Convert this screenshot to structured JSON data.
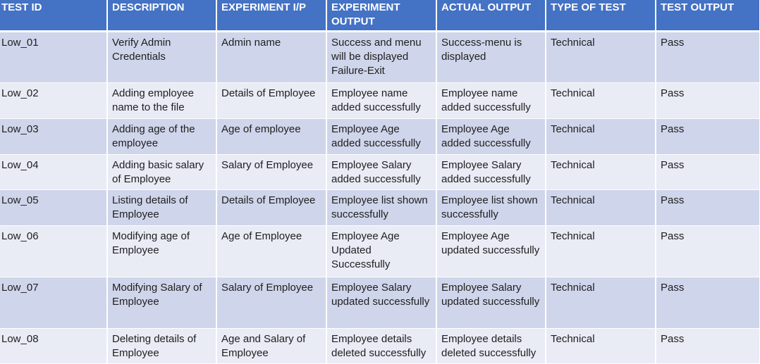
{
  "headers": [
    "TEST ID",
    "DESCRIPTION",
    "EXPERIMENT I/P",
    "EXPERIMENT OUTPUT",
    "ACTUAL OUTPUT",
    "TYPE OF TEST",
    "TEST OUTPUT"
  ],
  "rows": [
    [
      "Low_01",
      "Verify Admin Credentials",
      "Admin name",
      "Success and menu will be displayed Failure-Exit",
      "Success-menu is displayed",
      "Technical",
      "Pass"
    ],
    [
      "Low_02",
      "Adding employee name to the file",
      "Details of Employee",
      "Employee name added successfully",
      "Employee name added successfully",
      "Technical",
      "Pass"
    ],
    [
      "Low_03",
      "Adding age of the employee",
      "Age of employee",
      "Employee Age added successfully",
      "Employee Age added successfully",
      "Technical",
      "Pass"
    ],
    [
      "Low_04",
      "Adding basic salary of Employee",
      "Salary of Employee",
      "Employee Salary added successfully",
      "Employee Salary added successfully",
      "Technical",
      "Pass"
    ],
    [
      "Low_05",
      "Listing details of Employee",
      "Details of Employee",
      "Employee list shown successfully",
      "Employee list shown successfully",
      "Technical",
      "Pass"
    ],
    [
      "Low_06",
      "Modifying age of Employee",
      "Age of Employee",
      "Employee Age Updated Successfully",
      "Employee Age updated successfully",
      "Technical",
      "Pass"
    ],
    [
      "Low_07",
      "Modifying Salary of Employee",
      "Salary of Employee",
      "Employee Salary updated successfully",
      "Employee Salary updated successfully",
      "Technical",
      "Pass"
    ],
    [
      "Low_08",
      "Deleting details of Employee",
      "Age and Salary of Employee",
      "Employee details deleted successfully",
      "Employee details deleted successfully",
      "Technical",
      "Pass"
    ]
  ]
}
